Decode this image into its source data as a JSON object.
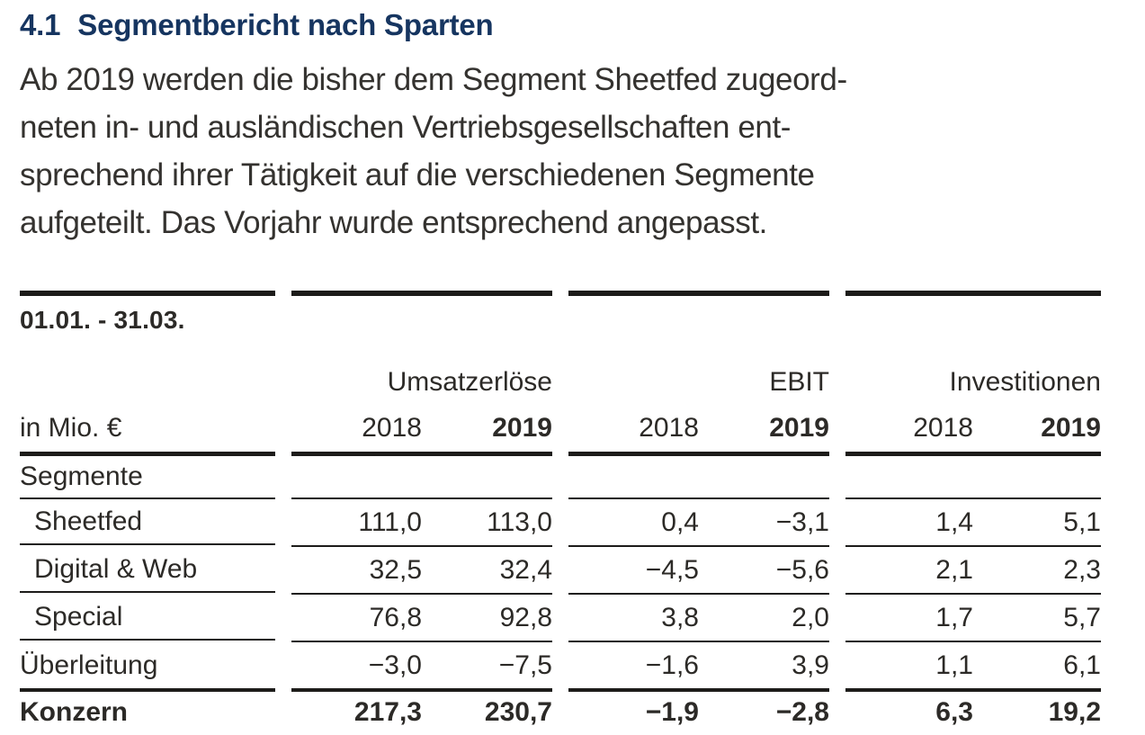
{
  "page": {
    "heading": {
      "number": "4.1",
      "text": "Segmentbericht nach Sparten"
    },
    "paragraph_lines": [
      "Ab 2019 werden die bisher dem Segment Sheetfed zugeord-",
      "neten in- und ausländischen Vertriebsgesellschaften ent-",
      "sprechend ihrer Tätigkeit auf die verschiedenen Segmente",
      "aufgeteilt. Das Vorjahr wurde entsprechend angepasst."
    ]
  },
  "colors": {
    "heading_accent": "#163560",
    "body_text": "#34322f",
    "rule": "#1d1c1a"
  },
  "table": {
    "period": "01.01. - 31.03.",
    "unit": "in Mio. €",
    "section_label": "Segmente",
    "groups": [
      {
        "title": "Umsatzerlöse",
        "year_prev": "2018",
        "year_curr": "2019"
      },
      {
        "title": "EBIT",
        "year_prev": "2018",
        "year_curr": "2019"
      },
      {
        "title": "Investitionen",
        "year_prev": "2018",
        "year_curr": "2019"
      }
    ],
    "rows": [
      {
        "label": "Sheetfed",
        "values": [
          "111,0",
          "113,0",
          "0,4",
          "−3,1",
          "1,4",
          "5,1"
        ]
      },
      {
        "label": "Digital & Web",
        "values": [
          "32,5",
          "32,4",
          "−4,5",
          "−5,6",
          "2,1",
          "2,3"
        ]
      },
      {
        "label": "Special",
        "values": [
          "76,8",
          "92,8",
          "3,8",
          "2,0",
          "1,7",
          "5,7"
        ]
      },
      {
        "label": "Überleitung",
        "values": [
          "−3,0",
          "−7,5",
          "−1,6",
          "3,9",
          "1,1",
          "6,1"
        ]
      },
      {
        "label": "Konzern",
        "values": [
          "217,3",
          "230,7",
          "−1,9",
          "−2,8",
          "6,3",
          "19,2"
        ]
      }
    ]
  }
}
